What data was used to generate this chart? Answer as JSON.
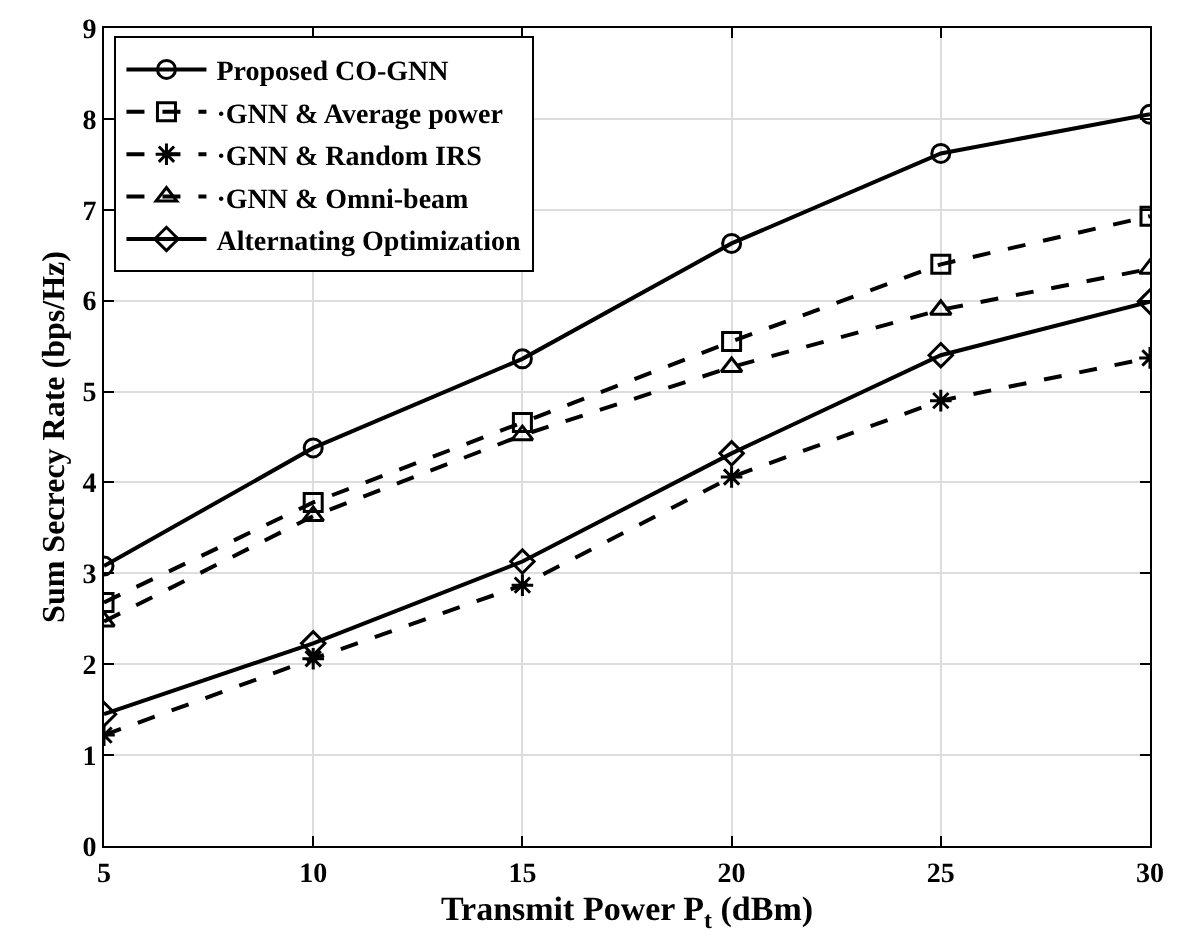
{
  "chart_data": {
    "type": "line",
    "xlabel": "Transmit Power P$_{t}$ (dBm)",
    "ylabel": "Sum Secrecy Rate (bps/Hz)",
    "x": [
      5,
      10,
      15,
      20,
      25,
      30
    ],
    "xlim": [
      5,
      30
    ],
    "xticks": [
      5,
      10,
      15,
      20,
      25,
      30
    ],
    "ylim": [
      0,
      9
    ],
    "yticks": [
      0,
      1,
      2,
      3,
      4,
      5,
      6,
      7,
      8,
      9
    ],
    "grid": true,
    "legend": "top left",
    "series": [
      {
        "name": "Proposed CO-GNN",
        "color": "#000000",
        "marker": "circle",
        "line_style": "solid",
        "values": [
          3.08,
          4.38,
          5.36,
          6.63,
          7.62,
          8.05
        ]
      },
      {
        "name": "·GNN & Average power",
        "color": "#000000",
        "marker": "square",
        "line_style": "dashed",
        "values": [
          2.68,
          3.78,
          4.66,
          5.55,
          6.4,
          6.93
        ]
      },
      {
        "name": "·GNN & Random IRS",
        "color": "#000000",
        "marker": "cross",
        "line_style": "dashed",
        "values": [
          1.22,
          2.06,
          2.87,
          4.06,
          4.9,
          5.37
        ]
      },
      {
        "name": "·GNN & Omni-beam",
        "color": "#000000",
        "marker": "triangle",
        "line_style": "dashed",
        "values": [
          2.47,
          3.63,
          4.52,
          5.27,
          5.9,
          6.35
        ]
      },
      {
        "name": "Alternating Optimization",
        "color": "#000000",
        "marker": "diamond",
        "line_style": "solid",
        "values": [
          1.45,
          2.23,
          3.13,
          4.32,
          5.4,
          5.99
        ]
      }
    ]
  }
}
